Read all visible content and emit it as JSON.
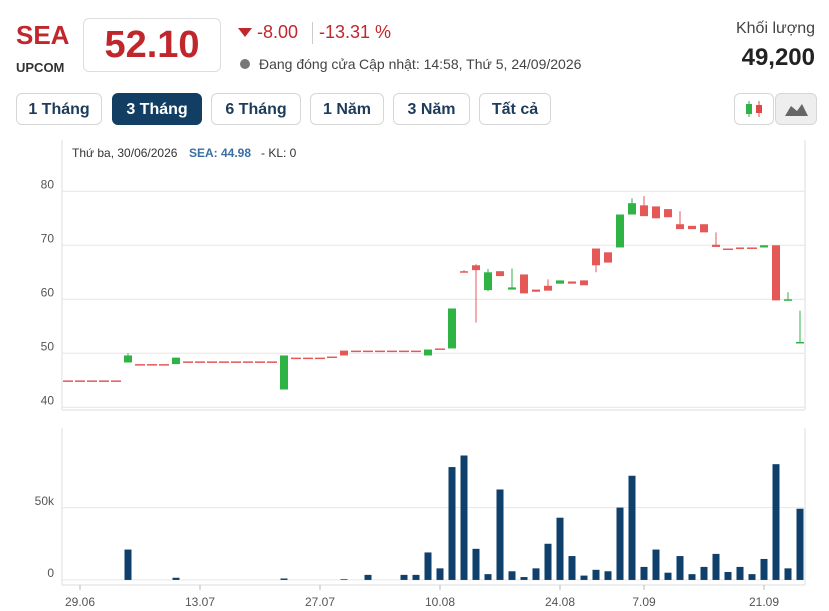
{
  "header": {
    "symbol": "SEA",
    "exchange": "UPCOM",
    "price": "52.10",
    "change": "-8.00",
    "change_percent": "-13.31 %",
    "status": "Đang đóng cửa",
    "updated": "Cập nhật: 14:58, Thứ 5, 24/09/2026",
    "volume_label": "Khối lượng",
    "volume": "49,200"
  },
  "tabs": [
    "1 Tháng",
    "3 Tháng",
    "6 Tháng",
    "1 Năm",
    "3 Năm",
    "Tất cả"
  ],
  "tooltip": {
    "date": "Thứ ba, 30/06/2026",
    "price": "SEA: 44.98",
    "volume": "- KL: 0"
  },
  "chart_data": [
    {
      "type": "candlestick",
      "up_color": "#2fb344",
      "down_color": "#e45858",
      "categories": [
        null,
        "29.06",
        null,
        null,
        null,
        null,
        null,
        null,
        null,
        null,
        null,
        "13.07",
        null,
        null,
        null,
        null,
        null,
        null,
        null,
        null,
        null,
        "27.07",
        null,
        null,
        null,
        null,
        null,
        null,
        null,
        null,
        null,
        "10.08",
        null,
        null,
        null,
        null,
        null,
        null,
        null,
        null,
        null,
        "24.08",
        null,
        null,
        null,
        null,
        null,
        null,
        "7.09",
        null,
        null,
        null,
        null,
        null,
        null,
        null,
        null,
        null,
        "21.09",
        null,
        null,
        null
      ],
      "open": [
        44.98,
        44.98,
        44.98,
        44.98,
        44.98,
        48.3,
        48,
        48,
        48,
        48,
        48.5,
        48.5,
        48.5,
        48.5,
        48.5,
        48.5,
        48.5,
        48.5,
        43.3,
        49.2,
        49.2,
        49.2,
        49.4,
        50.5,
        50.5,
        50.5,
        50.5,
        50.5,
        50.5,
        50.5,
        49.6,
        50.9,
        50.9,
        65.2,
        66.3,
        61.7,
        65.2,
        61.8,
        64.6,
        61.8,
        62.5,
        62.9,
        63.3,
        63.5,
        69.4,
        68.7,
        69.6,
        75.7,
        77.4,
        77.2,
        76.7,
        73.9,
        73.6,
        73.9,
        70.1,
        69.4,
        69.6,
        69.6,
        69.6,
        70,
        59.8,
        52
      ],
      "high": [
        44.98,
        44.98,
        44.98,
        44.98,
        44.98,
        50,
        48,
        48,
        48,
        49.2,
        48.5,
        48.5,
        48.5,
        48.5,
        48.5,
        48.5,
        48.5,
        48.5,
        49.6,
        49.2,
        49.2,
        49.2,
        49.4,
        50.5,
        50.5,
        50.5,
        50.5,
        50.5,
        50.5,
        50.5,
        50.7,
        50.9,
        58.3,
        65.4,
        66.5,
        65.6,
        65.2,
        65.7,
        64.6,
        61.8,
        63.7,
        63.5,
        63.3,
        63.5,
        69.4,
        68.7,
        75.7,
        78.7,
        79.1,
        77.2,
        76.7,
        76.3,
        73.6,
        73.9,
        72.4,
        69.4,
        69.6,
        69.6,
        70,
        70,
        61.3,
        57.9
      ],
      "low": [
        44.98,
        44.98,
        44.98,
        44.98,
        44.98,
        48.3,
        48,
        48,
        48,
        48,
        48.5,
        48.5,
        48.5,
        48.5,
        48.5,
        48.5,
        48.5,
        48.5,
        43.3,
        49.2,
        49.2,
        49.2,
        49.4,
        49.6,
        50.5,
        50.5,
        50.5,
        50.5,
        50.5,
        50.5,
        49.6,
        50.9,
        50.9,
        65,
        55.7,
        61.5,
        64.3,
        61.8,
        61.1,
        61.4,
        61.6,
        62.9,
        62.9,
        62.6,
        65,
        66.8,
        69.6,
        75.7,
        75.4,
        75,
        75.2,
        73,
        73,
        72.4,
        69.7,
        69.4,
        69.3,
        69.6,
        69.6,
        59.8,
        59.8,
        52
      ],
      "close": [
        44.98,
        44.98,
        44.98,
        44.98,
        44.98,
        49.6,
        48,
        48,
        48,
        49.2,
        48.5,
        48.5,
        48.5,
        48.5,
        48.5,
        48.5,
        48.5,
        48.5,
        49.6,
        49.2,
        49.2,
        49.2,
        49.4,
        49.6,
        50.5,
        50.5,
        50.5,
        50.5,
        50.5,
        50.5,
        50.7,
        50.9,
        58.3,
        65,
        65.4,
        65,
        64.3,
        62.2,
        61.1,
        61.4,
        61.6,
        63.5,
        62.9,
        62.6,
        66.3,
        66.8,
        75.7,
        77.8,
        75.4,
        75,
        75.2,
        73,
        73,
        72.4,
        69.7,
        69.4,
        69.3,
        69.6,
        70,
        59.8,
        60,
        52.1
      ],
      "ylim": [
        39.5,
        89.5
      ],
      "yticks": [
        40,
        50,
        60,
        70,
        80
      ],
      "grid": true
    },
    {
      "type": "bar",
      "color": "#0f3f6b",
      "values": [
        0,
        0,
        0,
        0,
        0,
        21000,
        0,
        0,
        0,
        1500,
        0,
        0,
        0,
        0,
        0,
        0,
        0,
        0,
        1000,
        0,
        0,
        0,
        0,
        500,
        0,
        3500,
        0,
        0,
        3500,
        3500,
        19000,
        8000,
        78000,
        86000,
        21500,
        4000,
        62500,
        6000,
        2000,
        8000,
        25000,
        43000,
        16500,
        3000,
        7000,
        6000,
        50000,
        72000,
        9000,
        21000,
        5000,
        16500,
        4000,
        9000,
        18000,
        5500,
        9000,
        4000,
        14500,
        80000,
        8000,
        49200
      ],
      "ylim": [
        -3500,
        105000
      ],
      "yticks": [
        0,
        {
          "value": 50000,
          "label": "50k"
        }
      ],
      "grid": true
    }
  ]
}
